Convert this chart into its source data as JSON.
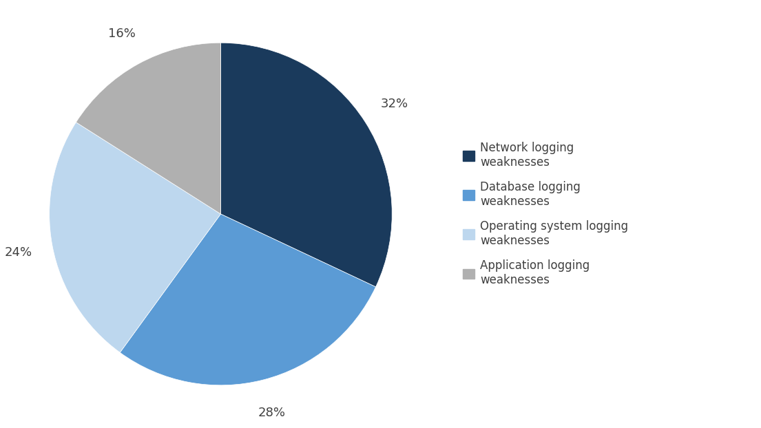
{
  "labels": [
    "Network logging\nweaknesses",
    "Database logging\nweaknesses",
    "Operating system logging\nweaknesses",
    "Application logging\nweaknesses"
  ],
  "values": [
    32,
    28,
    24,
    16
  ],
  "colors": [
    "#1a3a5c",
    "#5b9bd5",
    "#bdd7ee",
    "#b0b0b0"
  ],
  "pct_labels": [
    "32%",
    "28%",
    "24%",
    "16%"
  ],
  "background_color": "#ffffff",
  "pct_text_color": "#404040",
  "legend_text_color": "#404040",
  "pct_fontsize": 13,
  "legend_fontsize": 12
}
